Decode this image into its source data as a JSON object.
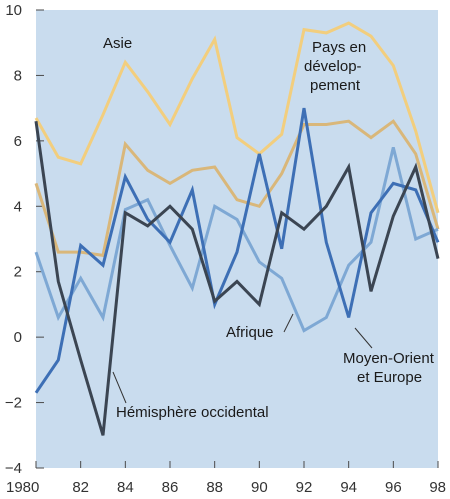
{
  "chart_data": {
    "type": "line",
    "title": "",
    "xlabel": "",
    "ylabel": "",
    "x": [
      1980,
      1981,
      1982,
      1983,
      1984,
      1985,
      1986,
      1987,
      1988,
      1989,
      1990,
      1991,
      1992,
      1993,
      1994,
      1995,
      1996,
      1997,
      1998
    ],
    "x_tick_values": [
      1980,
      1982,
      1984,
      1986,
      1988,
      1990,
      1992,
      1994,
      1996,
      1998
    ],
    "x_tick_labels": [
      "1980",
      "82",
      "84",
      "86",
      "88",
      "90",
      "92",
      "94",
      "96",
      "98"
    ],
    "xlim": [
      1980,
      1998
    ],
    "ylim": [
      -4,
      10
    ],
    "y_ticks": [
      -4,
      -2,
      0,
      2,
      4,
      6,
      8,
      10
    ],
    "y_tick_labels": [
      "−4",
      "−2",
      "0",
      "2",
      "4",
      "6",
      "8",
      "10"
    ],
    "background": "#c9dcee",
    "gridlines": "tick-marks only",
    "series": [
      {
        "name": "Asie",
        "color": "#f2ce7e",
        "values": [
          6.7,
          5.5,
          5.3,
          6.8,
          8.4,
          7.5,
          6.5,
          7.9,
          9.1,
          6.1,
          5.6,
          6.2,
          9.4,
          9.3,
          9.6,
          9.2,
          8.3,
          6.3,
          3.8
        ]
      },
      {
        "name": "Pays en développement",
        "color": "#d9b77a",
        "values": [
          4.7,
          2.6,
          2.6,
          2.5,
          5.9,
          5.1,
          4.7,
          5.1,
          5.2,
          4.2,
          4.0,
          5.0,
          6.5,
          6.5,
          6.6,
          6.1,
          6.6,
          5.6,
          3.3
        ]
      },
      {
        "name": "Afrique",
        "color": "#7ea8d4",
        "values": [
          2.6,
          0.6,
          1.8,
          0.6,
          3.9,
          4.2,
          2.8,
          1.5,
          4.0,
          3.6,
          2.3,
          1.8,
          0.2,
          0.6,
          2.2,
          2.9,
          5.8,
          3.0,
          3.3
        ]
      },
      {
        "name": "Moyen-Orient et Europe",
        "color": "#3d6fb5",
        "values": [
          -1.7,
          -0.7,
          2.8,
          2.2,
          4.9,
          3.6,
          2.9,
          4.5,
          1.0,
          2.6,
          5.6,
          2.7,
          7.0,
          2.9,
          0.6,
          3.8,
          4.7,
          4.5,
          2.9
        ]
      },
      {
        "name": "Hémisphère occidental",
        "color": "#3b4552",
        "values": [
          6.6,
          1.7,
          -0.7,
          -3.0,
          3.8,
          3.4,
          4.0,
          3.3,
          1.1,
          1.7,
          1.0,
          3.8,
          3.3,
          4.0,
          5.2,
          1.4,
          3.7,
          5.2,
          2.4
        ]
      }
    ],
    "annotations": {
      "asie": "Asie",
      "pays_line1": "Pays en",
      "pays_line2": "dévelop-",
      "pays_line3": "pement",
      "afrique": "Afrique",
      "moyen_line1": "Moyen-Orient",
      "moyen_line2": "et Europe",
      "hemisphere": "Hémisphère occidental"
    }
  }
}
